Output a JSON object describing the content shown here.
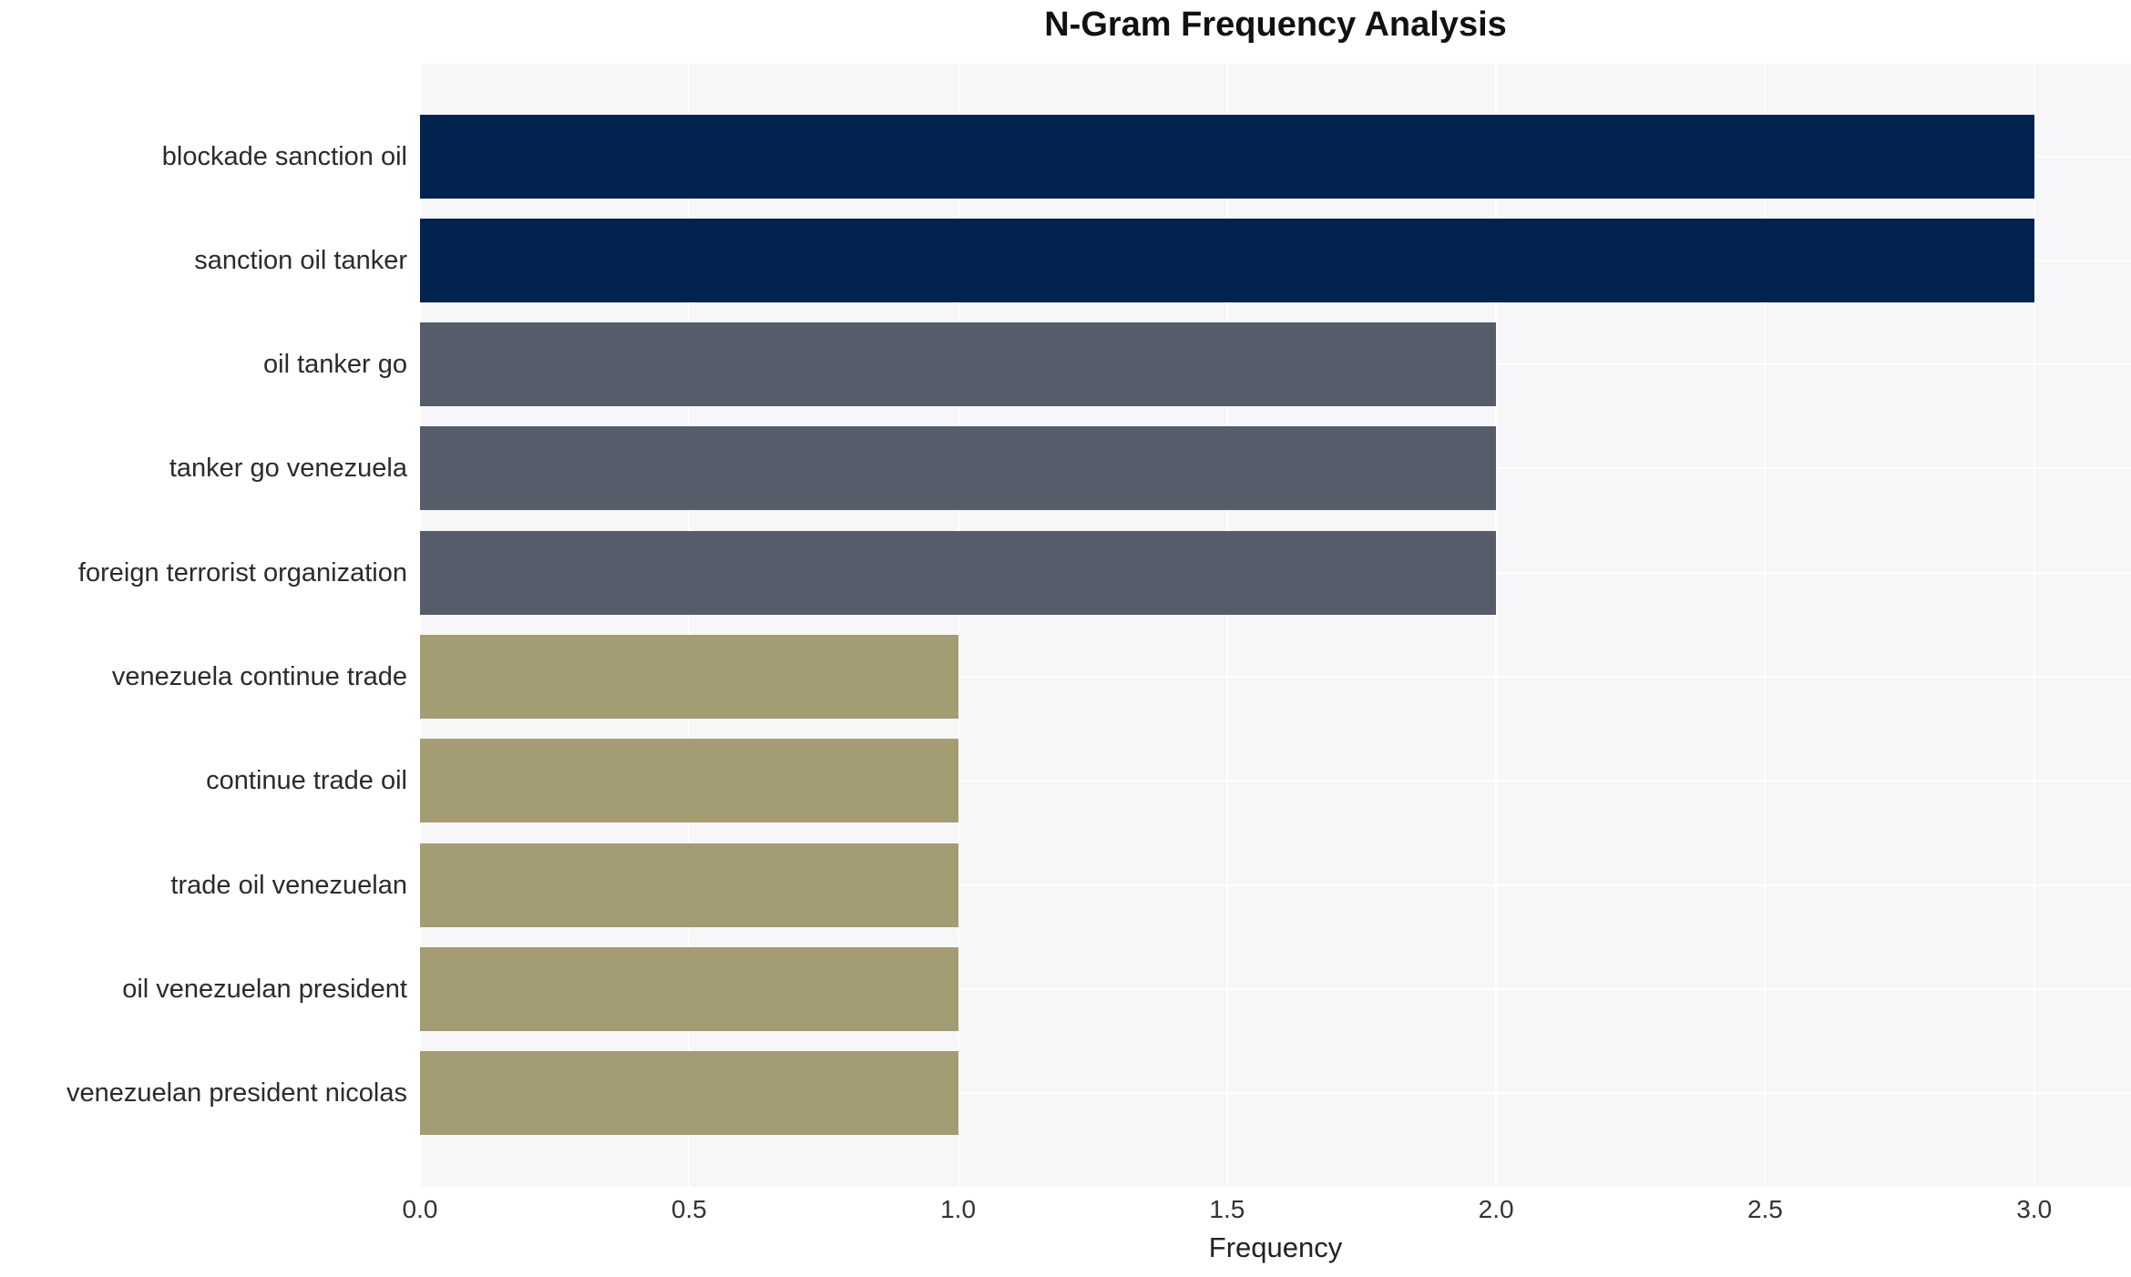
{
  "chart_data": {
    "type": "bar",
    "orientation": "horizontal",
    "title": "N-Gram Frequency Analysis",
    "xlabel": "Frequency",
    "ylabel": "",
    "categories": [
      "blockade sanction oil",
      "sanction oil tanker",
      "oil tanker go",
      "tanker go venezuela",
      "foreign terrorist organization",
      "venezuela continue trade",
      "continue trade oil",
      "trade oil venezuelan",
      "oil venezuelan president",
      "venezuelan president nicolas"
    ],
    "values": [
      3,
      3,
      2,
      2,
      2,
      1,
      1,
      1,
      1,
      1
    ],
    "bar_colors": [
      "#02234D",
      "#02234D",
      "#575C6B",
      "#575C6B",
      "#575C6B",
      "#A49C72",
      "#A49C72",
      "#A49C72",
      "#A49C72",
      "#A49C72"
    ],
    "x_ticks": [
      {
        "value": 0,
        "label": "0.0"
      },
      {
        "value": 0.5,
        "label": "0.5"
      },
      {
        "value": 1,
        "label": "1.0"
      },
      {
        "value": 1.5,
        "label": "1.5"
      },
      {
        "value": 2,
        "label": "2.0"
      },
      {
        "value": 2.5,
        "label": "2.5"
      },
      {
        "value": 3,
        "label": "3.0"
      }
    ],
    "xlim": [
      0,
      3.18
    ],
    "grid": true,
    "legend": "none",
    "colors": {
      "plot_background": "#F7F7F9",
      "gridline": "#FFFFFF",
      "value3": "#02234D",
      "value2": "#575C6B",
      "value1": "#A49C72",
      "text": "#2B2B2B"
    }
  }
}
